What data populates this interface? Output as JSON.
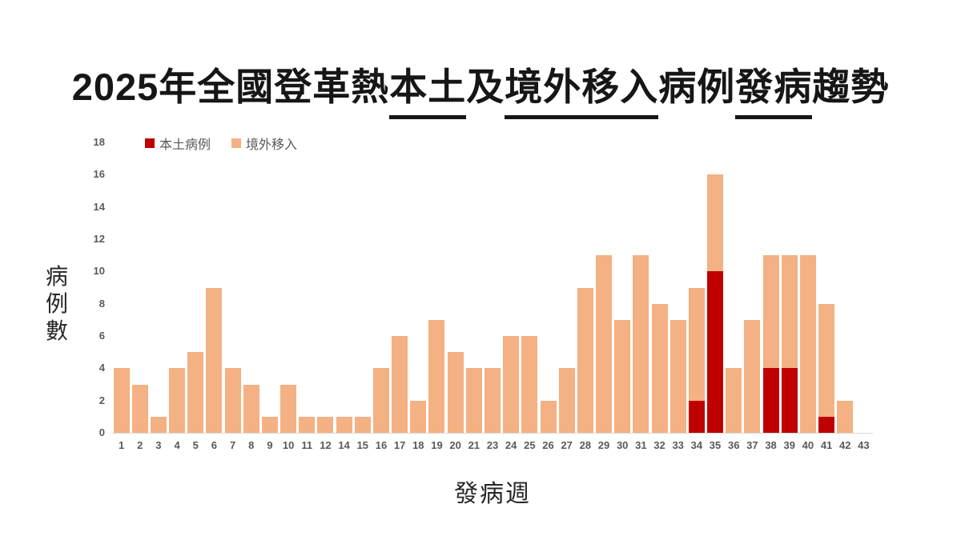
{
  "title": {
    "segments": [
      {
        "text": "2025年全國登革熱",
        "underline": false
      },
      {
        "text": "本土",
        "underline": true
      },
      {
        "text": "及",
        "underline": false
      },
      {
        "text": "境外移入",
        "underline": true
      },
      {
        "text": "病例",
        "underline": false
      },
      {
        "text": "發病",
        "underline": true
      },
      {
        "text": "趨勢",
        "underline": false
      }
    ]
  },
  "legend": {
    "items": [
      {
        "label": "本土病例",
        "color": "#c00000"
      },
      {
        "label": "境外移入",
        "color": "#f4b183"
      }
    ]
  },
  "axes": {
    "y_title": "病例數",
    "x_title": "發病週",
    "y_ticks": [
      0,
      2,
      4,
      6,
      8,
      10,
      12,
      14,
      16,
      18
    ]
  },
  "colors": {
    "local": "#c00000",
    "imported": "#f4b183",
    "axis_text": "#595959",
    "baseline": "#d9d9d9",
    "title_text": "#161616"
  },
  "chart_data": {
    "type": "bar",
    "stacked": true,
    "title": "2025年全國登革熱本土及境外移入病例發病趨勢",
    "xlabel": "發病週",
    "ylabel": "病例數",
    "ylim": [
      0,
      18
    ],
    "grid": false,
    "legend_position": "top-left",
    "categories": [
      "1",
      "2",
      "3",
      "4",
      "5",
      "6",
      "7",
      "8",
      "9",
      "10",
      "11",
      "12",
      "14",
      "15",
      "16",
      "17",
      "18",
      "19",
      "20",
      "21",
      "23",
      "24",
      "25",
      "26",
      "27",
      "28",
      "29",
      "30",
      "31",
      "32",
      "33",
      "34",
      "35",
      "36",
      "37",
      "38",
      "39",
      "40",
      "41",
      "42",
      "43"
    ],
    "series": [
      {
        "name": "本土病例",
        "color": "#c00000",
        "values": [
          0,
          0,
          0,
          0,
          0,
          0,
          0,
          0,
          0,
          0,
          0,
          0,
          0,
          0,
          0,
          0,
          0,
          0,
          0,
          0,
          0,
          0,
          0,
          0,
          0,
          0,
          0,
          0,
          0,
          0,
          0,
          2,
          10,
          0,
          0,
          4,
          4,
          0,
          1,
          0,
          0
        ]
      },
      {
        "name": "境外移入",
        "color": "#f4b183",
        "values": [
          4,
          3,
          1,
          4,
          5,
          9,
          4,
          3,
          1,
          3,
          1,
          1,
          1,
          1,
          4,
          6,
          2,
          7,
          5,
          4,
          4,
          6,
          6,
          2,
          4,
          9,
          11,
          7,
          11,
          8,
          7,
          7,
          6,
          4,
          7,
          7,
          7,
          11,
          7,
          2,
          0
        ]
      }
    ]
  }
}
